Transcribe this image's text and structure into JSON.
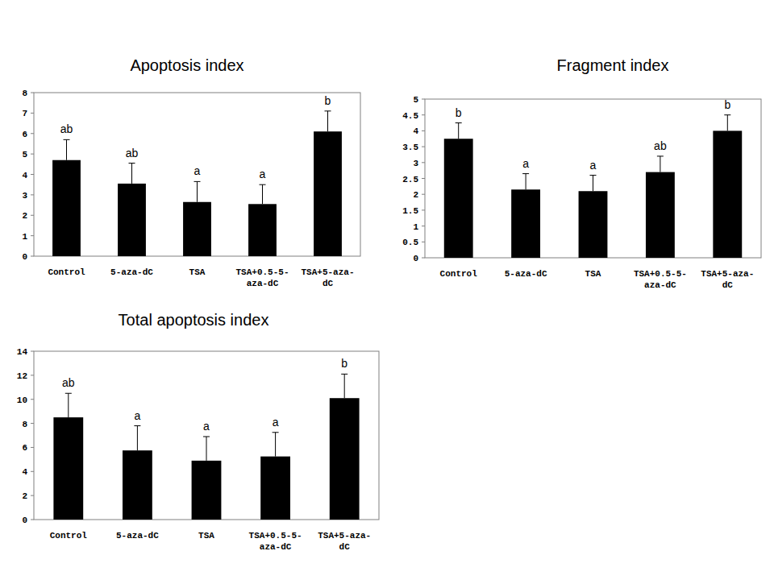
{
  "chart_data": [
    {
      "type": "bar",
      "title": "Apoptosis index",
      "categories": [
        "Control",
        "5-aza-dC",
        "TSA",
        "TSA+0.5-5-aza-dC",
        "TSA+5-aza-dC"
      ],
      "values": [
        4.7,
        3.55,
        2.65,
        2.55,
        6.1
      ],
      "errors": [
        1.0,
        1.0,
        1.0,
        0.95,
        1.0
      ],
      "annotations": [
        "ab",
        "ab",
        "a",
        "a",
        "b"
      ],
      "color": "#000000",
      "grid": false,
      "ylim": [
        0,
        8
      ],
      "yticks": [
        0,
        1,
        2,
        3,
        4,
        5,
        6,
        7,
        8
      ]
    },
    {
      "type": "bar",
      "title": "Fragment index",
      "categories": [
        "Control",
        "5-aza-dC",
        "TSA",
        "TSA+0.5-5-aza-dC",
        "TSA+5-aza-dC"
      ],
      "values": [
        3.75,
        2.15,
        2.1,
        2.7,
        4.0
      ],
      "errors": [
        0.5,
        0.5,
        0.5,
        0.5,
        0.5
      ],
      "annotations": [
        "b",
        "a",
        "a",
        "ab",
        "b"
      ],
      "color": "#000000",
      "grid": false,
      "ylim": [
        0,
        5
      ],
      "yticks": [
        0,
        0.5,
        1,
        1.5,
        2,
        2.5,
        3,
        3.5,
        4,
        4.5,
        5
      ]
    },
    {
      "type": "bar",
      "title": "Total apoptosis index",
      "categories": [
        "Control",
        "5-aza-dC",
        "TSA",
        "TSA+0.5-5-aza-dC",
        "TSA+5-aza-dC"
      ],
      "values": [
        8.5,
        5.75,
        4.9,
        5.25,
        10.1
      ],
      "errors": [
        2.0,
        2.05,
        2.0,
        2.0,
        2.0
      ],
      "annotations": [
        "ab",
        "a",
        "a",
        "a",
        "b"
      ],
      "color": "#000000",
      "grid": false,
      "ylim": [
        0,
        14
      ],
      "yticks": [
        0,
        2,
        4,
        6,
        8,
        10,
        12,
        14
      ]
    }
  ]
}
